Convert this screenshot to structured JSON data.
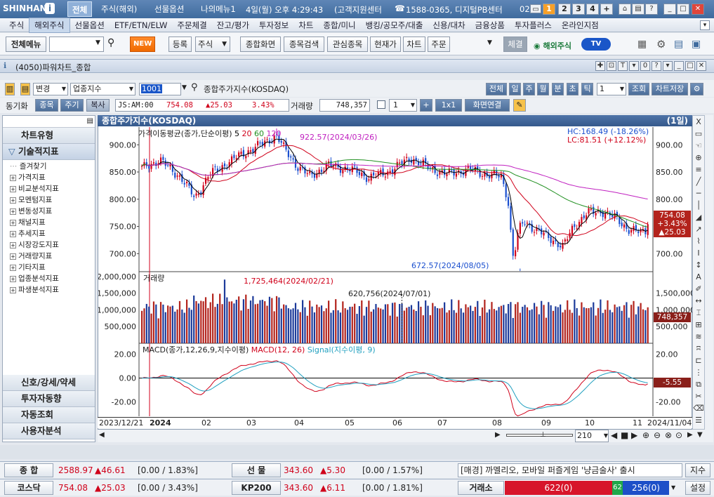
{
  "titlebar": {
    "logo": "SHINHAN",
    "tabs": [
      "전체",
      "주식(해외)",
      "선물옵션",
      "나의메뉴1"
    ],
    "clock": "4일(월) 오후 4:29:43",
    "center": "(고객지원센터",
    "phone_icon": "phone-icon",
    "phone": "1588-0365, 디지털PB센터",
    "phone2": "02",
    "pages": [
      "1",
      "2",
      "3",
      "4",
      "+"
    ]
  },
  "menubar": [
    "주식",
    "해외주식",
    "선물옵션",
    "ETF/ETN/ELW",
    "주문체결",
    "잔고/평가",
    "투자정보",
    "차트",
    "종합/미니",
    "뱅킹/공모주/대출",
    "신용/대차",
    "금융상품",
    "투자플러스",
    "온라인지점"
  ],
  "menubar_selected": "해외주식",
  "toolbar": {
    "menu_button": "전체메뉴",
    "new_label": "NEW",
    "register": "등록",
    "stock_select": "주식",
    "buttons": [
      "종합화면",
      "종목검색",
      "관심종목",
      "현재가",
      "차트",
      "주문"
    ],
    "conclusion": "체결",
    "overseas": "해외주식",
    "tv": "TV"
  },
  "window": {
    "title": "(4050)파워차트_종합"
  },
  "ctrl1": {
    "change_label": "변경",
    "industry_select": "업종지수",
    "code": "1001",
    "index_name": "종합주가지수(KOSDAQ)",
    "buttons": [
      "전체",
      "일",
      "주",
      "월",
      "분",
      "초",
      "틱"
    ],
    "period_value": "1",
    "query": "조회",
    "save": "차트저장"
  },
  "ctrl2": {
    "sync_label": "동기화",
    "buttons": [
      "종목",
      "주기",
      "복사"
    ],
    "time": "JS:AM:00",
    "price": "754.08",
    "change": "▲25.03",
    "rate": "3.43%",
    "volume_label": "거래량",
    "volume": "748,357",
    "count": "1",
    "plus": "+",
    "ratio": "1x1",
    "link": "화면연결"
  },
  "leftpanel": {
    "head1": "차트유형",
    "head2": "기술적지표",
    "tree": [
      {
        "label": "즐겨찾기",
        "leaf": true
      },
      {
        "label": "가격지표"
      },
      {
        "label": "비교분석지표"
      },
      {
        "label": "모멘텀지표"
      },
      {
        "label": "변동성지표"
      },
      {
        "label": "채널지표"
      },
      {
        "label": "추세지표"
      },
      {
        "label": "시장강도지표"
      },
      {
        "label": "거래량지표"
      },
      {
        "label": "기타지표"
      },
      {
        "label": "업종분석지표"
      },
      {
        "label": "파생분석지표"
      }
    ],
    "bottom": [
      "신호/강세/약세",
      "투자자동향",
      "자동조회",
      "사용자분석"
    ]
  },
  "chart": {
    "title": "종합주가지수(KOSDAQ)",
    "period_tag": "(1일)",
    "ma_label": "가격이동평균(종가,단순이평)",
    "ma_periods": [
      "5",
      "20",
      "60",
      "120"
    ],
    "hc": "HC:168.49 (-18.26%)",
    "lc": "LC:81.51 (+12.12%)",
    "high_note": "922.57(2024/03/26)",
    "low_note": "672.57(2024/08/05)",
    "price_badge": [
      "754.08",
      "+3.43%",
      "▲25.03"
    ],
    "price_ticks": [
      "900.00",
      "850.00",
      "800.00",
      "750.00",
      "700.00"
    ],
    "vol_label": "거래량",
    "vol_note1": "1,725,464(2024/02/21)",
    "vol_note2": "620,756(2024/07/01)",
    "vol_ticks_left": [
      "2,000,000",
      "1,500,000",
      "1,000,000",
      "500,000"
    ],
    "vol_ticks_right": [
      "1,500,000",
      "1,000,000",
      "500,000"
    ],
    "vol_badge": "748,357",
    "macd_label": "MACD(종가,12,26,9,지수이평)",
    "macd_series": "MACD(12, 26)",
    "signal_series": "Signal(지수이평, 9)",
    "macd_ticks_left": [
      "20.00",
      "0.00",
      "-20.00"
    ],
    "macd_ticks_right": [
      "20.00",
      "-20.00"
    ],
    "macd_badge": "-5.55",
    "x_labels": [
      "2023/12/21",
      "2024",
      "02",
      "03",
      "04",
      "05",
      "06",
      "07",
      "08",
      "09",
      "10",
      "11",
      "2024/11/04"
    ],
    "zoom_value": "210"
  },
  "ticker": {
    "row1": [
      {
        "label": "종 합",
        "price": "2588.97",
        "chg": "▲46.61",
        "detail": "[0.00 / 1.83%]"
      },
      {
        "label": "선 물",
        "price": "343.60",
        "chg": "▲5.30",
        "detail": "[0.00 / 1.57%]"
      }
    ],
    "row2": [
      {
        "label": "코스닥",
        "price": "754.08",
        "chg": "▲25.03",
        "detail": "[0.00 / 3.43%]"
      },
      {
        "label": "KP200",
        "price": "343.60",
        "chg": "▲6.11",
        "detail": "[0.00 / 1.81%]"
      }
    ],
    "news": "[매경] 까멜리오, 모바일 퍼즐게임 '냥금술사' 출시",
    "news_btn": "지수",
    "exchange_label": "거래소",
    "up": "622(0)",
    "flat": "62",
    "down": "256(0)",
    "settings": "설정"
  },
  "colors": {
    "up": "#d0021b",
    "down": "#1a4fcf",
    "ma5": "#000000",
    "ma20": "#d0021b",
    "ma60": "#1f8f1f",
    "ma120": "#c020c0",
    "signal": "#1f9fbf"
  }
}
